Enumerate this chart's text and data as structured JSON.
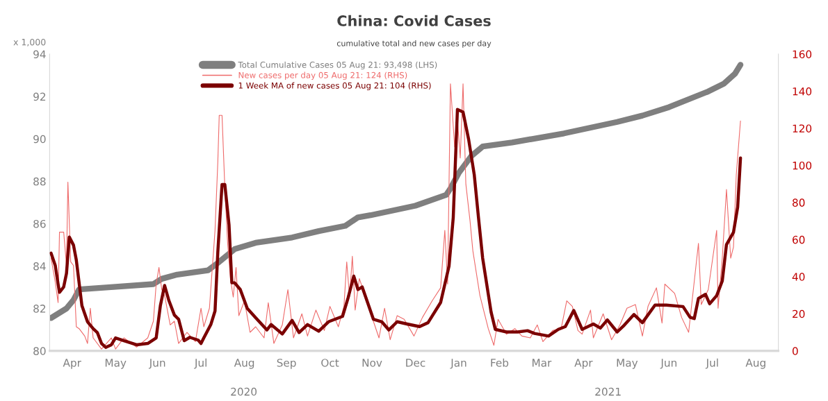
{
  "chart_data": {
    "type": "line",
    "title": "China: Covid Cases",
    "subtitle": "cumulative total and new cases per day",
    "ylabel": "x 1,000",
    "xlim": [
      "2020-03-30",
      "2021-09-01"
    ],
    "xticks": [
      {
        "value": "2020-04-15",
        "label": "Apr"
      },
      {
        "value": "2020-05-16",
        "label": "May"
      },
      {
        "value": "2020-06-15",
        "label": "Jun"
      },
      {
        "value": "2020-07-16",
        "label": "Jul"
      },
      {
        "value": "2020-08-16",
        "label": "Aug"
      },
      {
        "value": "2020-09-15",
        "label": "Sep"
      },
      {
        "value": "2020-10-16",
        "label": "Oct"
      },
      {
        "value": "2020-11-15",
        "label": "Nov"
      },
      {
        "value": "2020-12-16",
        "label": "Dec"
      },
      {
        "value": "2021-01-16",
        "label": "Jan"
      },
      {
        "value": "2021-02-14",
        "label": "Feb"
      },
      {
        "value": "2021-03-16",
        "label": "Mar"
      },
      {
        "value": "2021-04-15",
        "label": "Apr"
      },
      {
        "value": "2021-05-16",
        "label": "May"
      },
      {
        "value": "2021-06-15",
        "label": "Jun"
      },
      {
        "value": "2021-07-16",
        "label": "Jul"
      },
      {
        "value": "2021-08-16",
        "label": "Aug"
      }
    ],
    "ylim": [
      80,
      94
    ],
    "yticks": [
      80,
      82,
      84,
      86,
      88,
      90,
      92,
      94
    ],
    "y2lim": [
      0,
      160
    ],
    "y2ticks": [
      0,
      20,
      40,
      60,
      80,
      100,
      120,
      140,
      160
    ],
    "annotations": [
      "2020",
      "2021"
    ],
    "legend": "top left",
    "grid": false,
    "series": [
      {
        "name": "Total Cumulative Cases 05 Aug 21: 93,498 (LHS)",
        "color": "#7f7f7f",
        "x": [
          "2020-03-31",
          "2020-04-11",
          "2020-04-16",
          "2020-04-20",
          "2020-05-11",
          "2020-06-12",
          "2020-06-18",
          "2020-06-29",
          "2020-07-21",
          "2020-07-28",
          "2020-08-09",
          "2020-08-24",
          "2020-09-19",
          "2020-10-08",
          "2020-10-27",
          "2020-11-05",
          "2020-11-14",
          "2020-12-16",
          "2021-01-07",
          "2021-01-10",
          "2021-01-16",
          "2021-01-25",
          "2021-02-02",
          "2021-02-23",
          "2021-04-01",
          "2021-05-09",
          "2021-05-27",
          "2021-06-15",
          "2021-07-13",
          "2021-07-24",
          "2021-08-01",
          "2021-08-05"
        ],
        "values": [
          81.55,
          82.0,
          82.4,
          82.9,
          83.0,
          83.15,
          83.4,
          83.6,
          83.8,
          84.15,
          84.8,
          85.1,
          85.35,
          85.65,
          85.9,
          86.3,
          86.4,
          86.85,
          87.36,
          87.66,
          88.4,
          89.2,
          89.64,
          89.83,
          90.26,
          90.8,
          91.1,
          91.5,
          92.24,
          92.6,
          93.07,
          93.498
        ]
      },
      {
        "name": "New cases per day 05 Aug 21: 124 (RHS)",
        "color": "#ee6a6a",
        "axis": "y2",
        "x": [
          "2020-03-31",
          "2020-04-03",
          "2020-04-05",
          "2020-04-06",
          "2020-04-09",
          "2020-04-11",
          "2020-04-12",
          "2020-04-14",
          "2020-04-16",
          "2020-04-18",
          "2020-04-20",
          "2020-04-24",
          "2020-04-26",
          "2020-04-28",
          "2020-04-30",
          "2020-05-06",
          "2020-05-13",
          "2020-05-16",
          "2020-05-22",
          "2020-05-31",
          "2020-06-08",
          "2020-06-12",
          "2020-06-14",
          "2020-06-16",
          "2020-06-18",
          "2020-06-20",
          "2020-06-24",
          "2020-06-27",
          "2020-06-30",
          "2020-07-06",
          "2020-07-12",
          "2020-07-16",
          "2020-07-18",
          "2020-07-22",
          "2020-07-26",
          "2020-07-28",
          "2020-07-29",
          "2020-07-31",
          "2020-08-02",
          "2020-08-04",
          "2020-08-06",
          "2020-08-08",
          "2020-08-10",
          "2020-08-12",
          "2020-08-16",
          "2020-08-20",
          "2020-08-24",
          "2020-08-30",
          "2020-09-02",
          "2020-09-06",
          "2020-09-12",
          "2020-09-16",
          "2020-09-20",
          "2020-09-26",
          "2020-09-30",
          "2020-10-06",
          "2020-10-12",
          "2020-10-16",
          "2020-10-22",
          "2020-10-26",
          "2020-10-28",
          "2020-10-30",
          "2020-11-01",
          "2020-11-03",
          "2020-11-06",
          "2020-11-10",
          "2020-11-16",
          "2020-11-20",
          "2020-11-24",
          "2020-11-28",
          "2020-12-03",
          "2020-12-08",
          "2020-12-15",
          "2020-12-21",
          "2020-12-28",
          "2021-01-03",
          "2021-01-06",
          "2021-01-08",
          "2021-01-10",
          "2021-01-13",
          "2021-01-15",
          "2021-01-17",
          "2021-01-19",
          "2021-01-21",
          "2021-01-24",
          "2021-01-26",
          "2021-01-31",
          "2021-02-06",
          "2021-02-10",
          "2021-02-13",
          "2021-02-19",
          "2021-02-25",
          "2021-03-02",
          "2021-03-08",
          "2021-03-13",
          "2021-03-17",
          "2021-03-24",
          "2021-03-30",
          "2021-04-03",
          "2021-04-07",
          "2021-04-11",
          "2021-04-14",
          "2021-04-20",
          "2021-04-22",
          "2021-04-29",
          "2021-05-05",
          "2021-05-11",
          "2021-05-16",
          "2021-05-22",
          "2021-05-27",
          "2021-05-31",
          "2021-06-06",
          "2021-06-10",
          "2021-06-12",
          "2021-06-19",
          "2021-06-24",
          "2021-06-29",
          "2021-07-06",
          "2021-07-08",
          "2021-07-13",
          "2021-07-19",
          "2021-07-20",
          "2021-07-23",
          "2021-07-26",
          "2021-07-29",
          "2021-07-31",
          "2021-08-02",
          "2021-08-05"
        ],
        "values": [
          50,
          37,
          26,
          64,
          64,
          46,
          91,
          48,
          46,
          13,
          12,
          8,
          4,
          23,
          7,
          1,
          7,
          1,
          7,
          2,
          7,
          16,
          36,
          45,
          33,
          30,
          14,
          16,
          4,
          10,
          5,
          23,
          13,
          23,
          65,
          102,
          127,
          127,
          88,
          58,
          39,
          29,
          45,
          19,
          27,
          10,
          13,
          7,
          26,
          4,
          14,
          33,
          7,
          20,
          8,
          22,
          11,
          24,
          13,
          24,
          48,
          29,
          51,
          22,
          39,
          30,
          16,
          7,
          23,
          6,
          19,
          17,
          8,
          18,
          27,
          34,
          65,
          36,
          144,
          110,
          125,
          104,
          144,
          90,
          70,
          54,
          30,
          12,
          3,
          17,
          9,
          12,
          8,
          7,
          14,
          5,
          11,
          12,
          27,
          24,
          11,
          9,
          22,
          7,
          20,
          6,
          14,
          23,
          25,
          8,
          24,
          34,
          15,
          36,
          31,
          18,
          10,
          58,
          25,
          33,
          65,
          23,
          50,
          87,
          50,
          56,
          95,
          124
        ]
      },
      {
        "name": "1 Week MA of new cases 05 Aug 21: 104 (RHS)",
        "color": "#7b0000",
        "axis": "y2",
        "x": [
          "2020-03-31",
          "2020-04-03",
          "2020-04-05",
          "2020-04-06",
          "2020-04-09",
          "2020-04-11",
          "2020-04-13",
          "2020-04-16",
          "2020-04-18",
          "2020-04-22",
          "2020-04-26",
          "2020-04-30",
          "2020-05-03",
          "2020-05-06",
          "2020-05-09",
          "2020-05-13",
          "2020-05-16",
          "2020-05-22",
          "2020-05-31",
          "2020-06-08",
          "2020-06-14",
          "2020-06-17",
          "2020-06-20",
          "2020-06-23",
          "2020-06-27",
          "2020-06-30",
          "2020-07-04",
          "2020-07-08",
          "2020-07-14",
          "2020-07-16",
          "2020-07-18",
          "2020-07-23",
          "2020-07-26",
          "2020-07-28",
          "2020-07-31",
          "2020-08-02",
          "2020-08-05",
          "2020-08-07",
          "2020-08-09",
          "2020-08-13",
          "2020-08-18",
          "2020-08-24",
          "2020-09-01",
          "2020-09-04",
          "2020-09-12",
          "2020-09-19",
          "2020-09-24",
          "2020-09-30",
          "2020-10-08",
          "2020-10-15",
          "2020-10-25",
          "2020-10-29",
          "2020-11-02",
          "2020-11-05",
          "2020-11-08",
          "2020-11-16",
          "2020-11-22",
          "2020-11-27",
          "2020-12-03",
          "2020-12-10",
          "2020-12-19",
          "2020-12-25",
          "2021-01-03",
          "2021-01-09",
          "2021-01-12",
          "2021-01-15",
          "2021-01-19",
          "2021-01-23",
          "2021-01-27",
          "2021-01-30",
          "2021-02-02",
          "2021-02-08",
          "2021-02-11",
          "2021-02-19",
          "2021-02-27",
          "2021-03-06",
          "2021-03-11",
          "2021-03-21",
          "2021-03-28",
          "2021-04-02",
          "2021-04-08",
          "2021-04-14",
          "2021-04-22",
          "2021-04-27",
          "2021-05-02",
          "2021-05-09",
          "2021-05-14",
          "2021-05-21",
          "2021-05-27",
          "2021-06-05",
          "2021-06-13",
          "2021-06-25",
          "2021-06-30",
          "2021-07-03",
          "2021-07-06",
          "2021-07-11",
          "2021-07-14",
          "2021-07-19",
          "2021-07-23",
          "2021-07-26",
          "2021-07-31",
          "2021-08-03",
          "2021-08-05"
        ],
        "values": [
          52.7,
          46,
          36,
          31.6,
          34.5,
          41.8,
          61.4,
          57,
          49,
          24.4,
          15.7,
          12,
          9.9,
          4,
          1.9,
          3.3,
          7,
          5.5,
          3.3,
          4,
          7,
          24.4,
          35.3,
          27.3,
          19.3,
          17.1,
          5.5,
          7.3,
          5.8,
          4,
          7,
          14.2,
          21.5,
          53.4,
          89.7,
          89.7,
          67.9,
          36.7,
          36.7,
          33.1,
          22.9,
          17.9,
          11.3,
          14.2,
          9.1,
          16.4,
          9.9,
          14.2,
          10.6,
          15.7,
          18.6,
          28.7,
          40.3,
          33.1,
          34.5,
          17.1,
          15.7,
          11.3,
          15.7,
          14.5,
          13.1,
          15.2,
          26.1,
          45.7,
          71.8,
          130.2,
          128.8,
          114,
          95,
          72,
          50,
          21,
          11.6,
          10.2,
          10.2,
          10.9,
          9.4,
          8,
          11.6,
          13.1,
          21.8,
          11.6,
          14.5,
          12.3,
          16.7,
          10.2,
          13.8,
          19.6,
          15.2,
          24.7,
          24.7,
          23.9,
          18.1,
          17.4,
          28.3,
          30.5,
          25.4,
          29.8,
          37.7,
          57.3,
          63.9,
          77.6,
          104
        ]
      }
    ]
  }
}
